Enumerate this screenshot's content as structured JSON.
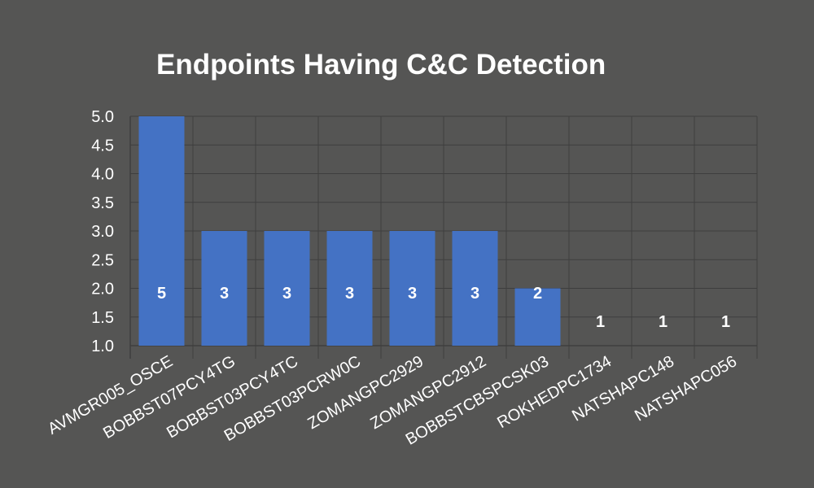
{
  "chart_data": {
    "type": "bar",
    "title": "Endpoints Having C&C Detection",
    "xlabel": "",
    "ylabel": "",
    "categories": [
      "AVMGR005_OSCE",
      "BOBBST07PCY4TG",
      "BOBBST03PCY4TC",
      "BOBBST03PCRW0C",
      "ZOMANGPC2929",
      "ZOMANGPC2912",
      "BOBBSTCBSPCSK03",
      "ROKHEDPC1734",
      "NATSHAPC148",
      "NATSHAPC056"
    ],
    "values": [
      5,
      3,
      3,
      3,
      3,
      3,
      2,
      1,
      1,
      1
    ],
    "ylim": [
      1.0,
      5.0
    ],
    "yticks": [
      "1.0",
      "1.5",
      "2.0",
      "2.5",
      "3.0",
      "3.5",
      "4.0",
      "4.5",
      "5.0"
    ],
    "grid": true,
    "legend": "none",
    "colors": {
      "background": "#555554",
      "bar": "#4472c4",
      "grid": "#3e3e3e",
      "text": "#ffffff"
    }
  }
}
